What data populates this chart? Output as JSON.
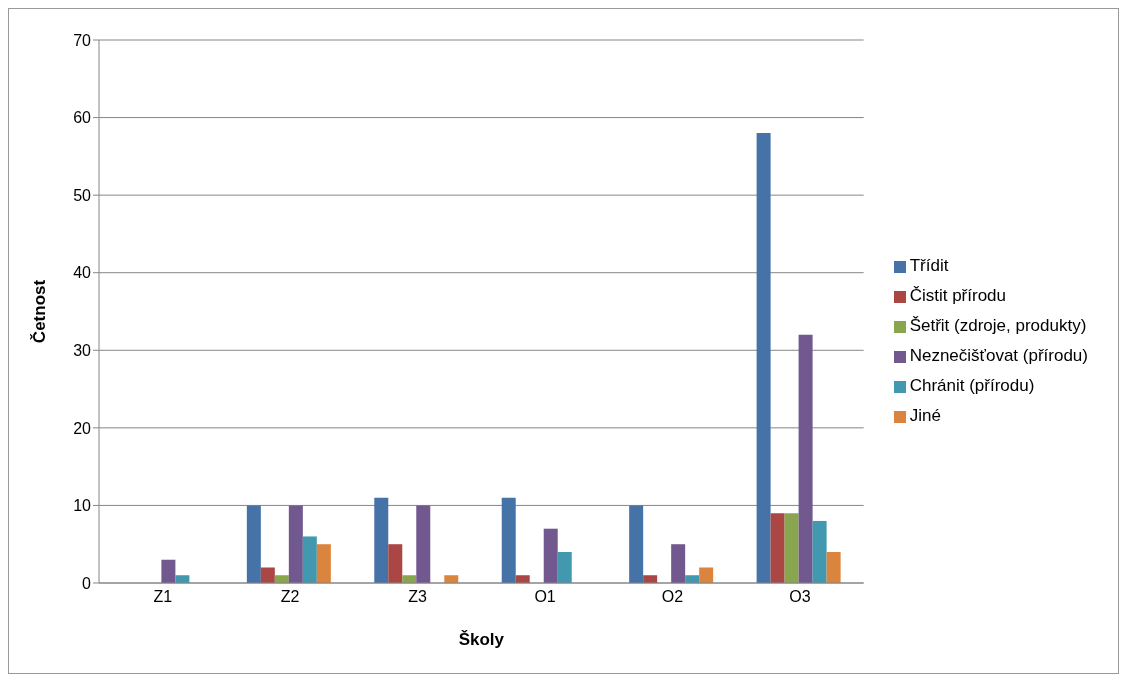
{
  "chart_data": {
    "type": "bar",
    "xlabel": "Školy",
    "ylabel": "Četnost",
    "categories": [
      "Z1",
      "Z2",
      "Z3",
      "O1",
      "O2",
      "O3"
    ],
    "series": [
      {
        "name": "Třídit",
        "color": "#4572a7",
        "values": [
          0,
          10,
          11,
          11,
          10,
          58
        ]
      },
      {
        "name": "Čistit přírodu",
        "color": "#aa4643",
        "values": [
          0,
          2,
          5,
          1,
          1,
          9
        ]
      },
      {
        "name": "Šetřit (zdroje, produkty)",
        "color": "#89a54e",
        "values": [
          0,
          1,
          1,
          0,
          0,
          9
        ]
      },
      {
        "name": "Neznečišťovat (přírodu)",
        "color": "#71588f",
        "values": [
          3,
          10,
          10,
          7,
          5,
          32
        ]
      },
      {
        "name": "Chránit (přírodu)",
        "color": "#4198af",
        "values": [
          1,
          6,
          0,
          4,
          1,
          8
        ]
      },
      {
        "name": "Jiné",
        "color": "#db843d",
        "values": [
          0,
          5,
          1,
          0,
          2,
          4
        ]
      }
    ],
    "ylim": [
      0,
      70
    ],
    "yticks": [
      0,
      10,
      20,
      30,
      40,
      50,
      60,
      70
    ],
    "grid": "y",
    "legend": "right"
  }
}
